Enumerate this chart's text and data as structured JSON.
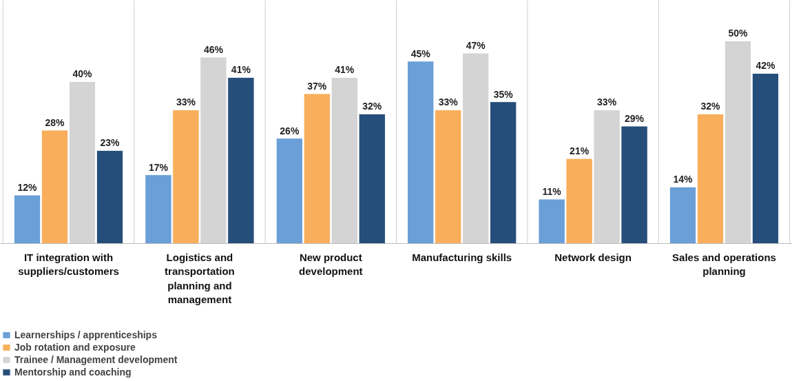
{
  "chart_data": {
    "type": "bar",
    "categories": [
      "IT integration with suppliers/customers",
      "Logistics and transportation planning and management",
      "New product development",
      "Manufacturing skills",
      "Network design",
      "Sales and operations planning"
    ],
    "series": [
      {
        "name": "Learnerships / apprenticeships",
        "color": "#6a9fd8",
        "values": [
          12,
          17,
          26,
          45,
          11,
          14
        ],
        "value_labels": [
          "12%",
          "17%",
          "26%",
          "45%",
          "11%",
          "14%"
        ]
      },
      {
        "name": "Job rotation and exposure",
        "color": "#f9ae5b",
        "values": [
          28,
          33,
          37,
          33,
          21,
          32
        ],
        "value_labels": [
          "28%",
          "33%",
          "37%",
          "33%",
          "21%",
          "32%"
        ]
      },
      {
        "name": "Trainee / Management development",
        "color": "#d4d4d4",
        "values": [
          40,
          46,
          41,
          47,
          33,
          50
        ],
        "value_labels": [
          "40%",
          "46%",
          "41%",
          "47%",
          "33%",
          "50%"
        ]
      },
      {
        "name": "Mentorship and coaching",
        "color": "#264e7a",
        "values": [
          23,
          41,
          32,
          35,
          29,
          42
        ],
        "value_labels": [
          "23%",
          "41%",
          "32%",
          "35%",
          "29%",
          "42%"
        ]
      }
    ],
    "grid": "x",
    "legend": "bottom left"
  }
}
